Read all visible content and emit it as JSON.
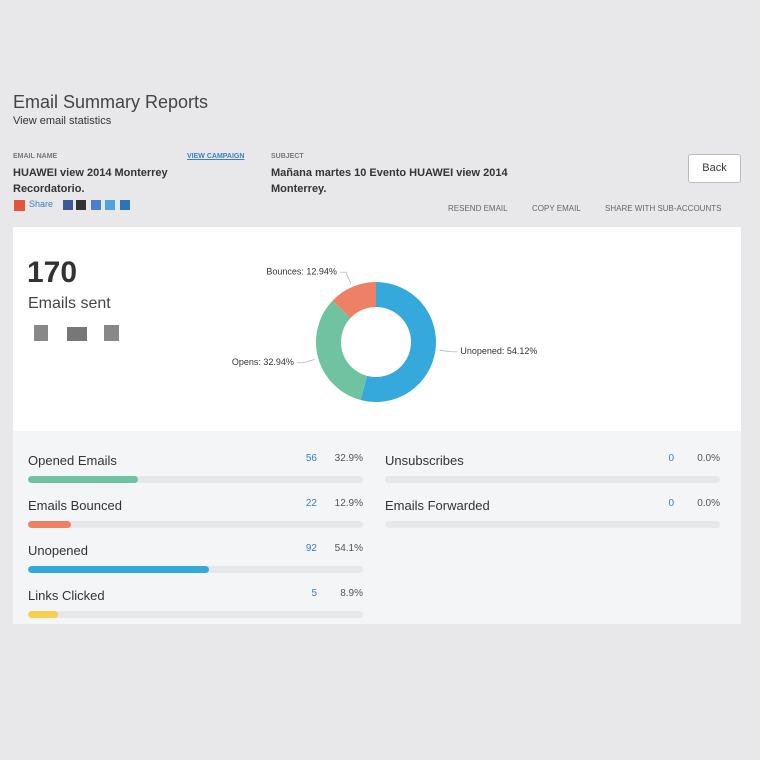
{
  "header": {
    "title": "Email Summary Reports",
    "subtitle": "View email statistics"
  },
  "email_info": {
    "name_label": "EMAIL NAME",
    "view_campaign": "VIEW CAMPAIGN",
    "name": "HUAWEI view 2014 Monterrey Recordatorio.",
    "share": "Share",
    "subject_label": "SUBJECT",
    "subject": "Mañana martes 10 Evento HUAWEI view 2014 Monterrey."
  },
  "actions": {
    "back": "Back",
    "links": [
      "RESEND EMAIL",
      "COPY EMAIL",
      "SHARE WITH SUB-ACCOUNTS"
    ]
  },
  "summary": {
    "count": 170,
    "label": "Emails sent"
  },
  "chart_data": {
    "type": "pie",
    "donut": true,
    "values": [
      54.12,
      32.94,
      12.94
    ],
    "value_labels": [
      "Unopened: 54.12%",
      "Opens: 32.94%",
      "Bounces: 12.94%"
    ],
    "colors": [
      "#35a9dc",
      "#6fc3a0",
      "#ee8065"
    ]
  },
  "stats": {
    "left": [
      {
        "name": "Opened Emails",
        "count": 56,
        "percent": 32.9,
        "percent_label": "32.9%",
        "color": "#6fc3a0"
      },
      {
        "name": "Emails Bounced",
        "count": 22,
        "percent": 12.9,
        "percent_label": "12.9%",
        "color": "#ee8065"
      },
      {
        "name": "Unopened",
        "count": 92,
        "percent": 54.1,
        "percent_label": "54.1%",
        "color": "#35a9dc"
      },
      {
        "name": "Links Clicked",
        "count": 5,
        "percent": 8.9,
        "percent_label": "8.9%",
        "color": "#f5d04f"
      }
    ],
    "right": [
      {
        "name": "Unsubscribes",
        "count": 0,
        "percent": 0,
        "percent_label": "0.0%",
        "color": "#35a9dc"
      },
      {
        "name": "Emails Forwarded",
        "count": 0,
        "percent": 0,
        "percent_label": "0.0%",
        "color": "#35a9dc"
      }
    ]
  }
}
